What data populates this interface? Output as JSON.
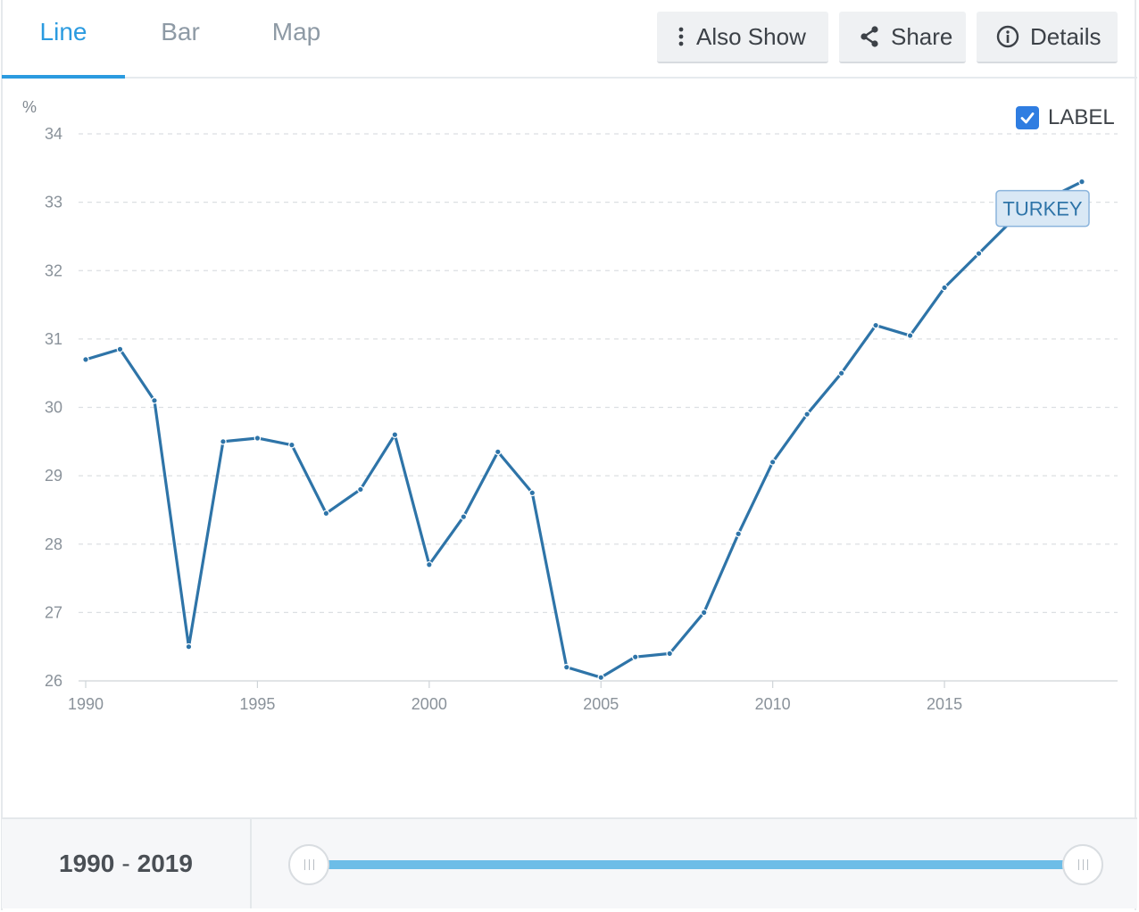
{
  "tabs": [
    {
      "label": "Line",
      "active": true
    },
    {
      "label": "Bar",
      "active": false
    },
    {
      "label": "Map",
      "active": false
    }
  ],
  "toolbar": {
    "also_show_label": "Also Show",
    "share_label": "Share",
    "details_label": "Details"
  },
  "label_toggle": {
    "text": "LABEL",
    "checked": true
  },
  "slider": {
    "start": "1990",
    "separator": "-",
    "end": "2019"
  },
  "colors": {
    "accent": "#2b9be0",
    "line": "#2e74a8",
    "track": "#6dbde7",
    "checkbox": "#2f7de1"
  },
  "chart_data": {
    "type": "line",
    "title": "",
    "xlabel": "",
    "ylabel": "%",
    "ylim": [
      26,
      34
    ],
    "xlim": [
      1990,
      2019
    ],
    "yticks": [
      26,
      27,
      28,
      29,
      30,
      31,
      32,
      33,
      34
    ],
    "xticks": [
      1990,
      1995,
      2000,
      2005,
      2010,
      2015
    ],
    "grid": true,
    "series": [
      {
        "name": "TURKEY",
        "x": [
          1990,
          1991,
          1992,
          1993,
          1994,
          1995,
          1996,
          1997,
          1998,
          1999,
          2000,
          2001,
          2002,
          2003,
          2004,
          2005,
          2006,
          2007,
          2008,
          2009,
          2010,
          2011,
          2012,
          2013,
          2014,
          2015,
          2016,
          2017,
          2018,
          2019
        ],
        "values": [
          30.7,
          30.85,
          30.1,
          26.5,
          29.5,
          29.55,
          29.45,
          28.45,
          28.8,
          29.6,
          27.7,
          28.4,
          29.35,
          28.75,
          26.2,
          26.05,
          26.35,
          26.4,
          27.0,
          28.15,
          29.2,
          29.9,
          30.5,
          31.2,
          31.05,
          31.75,
          32.25,
          32.75,
          33.05,
          33.3
        ]
      }
    ]
  }
}
